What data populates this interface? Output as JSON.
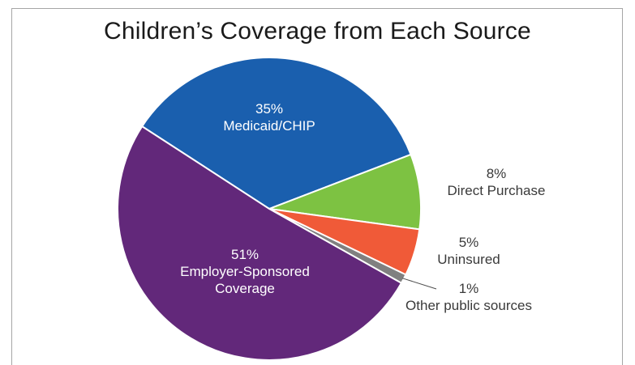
{
  "chart_data": {
    "type": "pie",
    "title": "Children’s Coverage from Each Source",
    "slices": [
      {
        "label": "Medicaid/CHIP",
        "value": 35,
        "value_label": "35%",
        "color": "#1a5fae",
        "label_position": "inside",
        "label_color": "#ffffff"
      },
      {
        "label": "Direct Purchase",
        "value": 8,
        "value_label": "8%",
        "color": "#7dc242",
        "label_position": "outside",
        "label_color": "#3a3a3a"
      },
      {
        "label": "Uninsured",
        "value": 5,
        "value_label": "5%",
        "color": "#f05a38",
        "label_position": "outside",
        "label_color": "#3a3a3a"
      },
      {
        "label": "Other public sources",
        "value": 1,
        "value_label": "1%",
        "color": "#808080",
        "label_position": "outside-leader",
        "label_color": "#3a3a3a"
      },
      {
        "label": "Employer-Sponsored Coverage",
        "label_lines": [
          "Employer-Sponsored",
          "Coverage"
        ],
        "value": 51,
        "value_label": "51%",
        "color": "#62287a",
        "label_position": "inside",
        "label_color": "#ffffff"
      }
    ],
    "start": "Medicaid slice begins at upper-left boundary with Employer-Sponsored, proceeding clockwise",
    "legend": "none"
  }
}
